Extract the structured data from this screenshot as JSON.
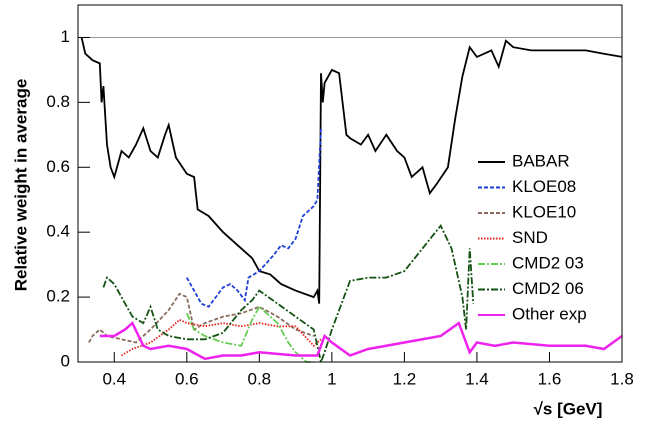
{
  "chart_data": {
    "type": "line",
    "x_label": "√s   [GeV]",
    "y_label": "Relative weight in average",
    "xlim": [
      0.3,
      1.8
    ],
    "ylim": [
      0,
      1.1
    ],
    "xticks": [
      0.4,
      0.6,
      0.8,
      1,
      1.2,
      1.4,
      1.6,
      1.8
    ],
    "yticks": [
      0,
      0.2,
      0.4,
      0.6,
      0.8,
      1
    ],
    "reference_line": 1,
    "legend": "right",
    "series": [
      {
        "name": "BABAR",
        "color": "#000000",
        "style": "solid",
        "x": [
          0.31,
          0.32,
          0.34,
          0.36,
          0.365,
          0.37,
          0.38,
          0.39,
          0.4,
          0.42,
          0.44,
          0.46,
          0.48,
          0.5,
          0.52,
          0.54,
          0.55,
          0.57,
          0.6,
          0.62,
          0.63,
          0.66,
          0.7,
          0.74,
          0.78,
          0.8,
          0.83,
          0.86,
          0.9,
          0.95,
          0.96,
          0.965,
          0.97,
          0.975,
          0.98,
          1.0,
          1.02,
          1.04,
          1.05,
          1.08,
          1.1,
          1.12,
          1.15,
          1.18,
          1.2,
          1.22,
          1.25,
          1.27,
          1.29,
          1.32,
          1.34,
          1.36,
          1.38,
          1.4,
          1.44,
          1.46,
          1.48,
          1.5,
          1.55,
          1.6,
          1.7,
          1.75,
          1.8
        ],
        "values": [
          1.0,
          0.95,
          0.93,
          0.92,
          0.8,
          0.85,
          0.67,
          0.6,
          0.57,
          0.65,
          0.63,
          0.67,
          0.72,
          0.65,
          0.63,
          0.7,
          0.73,
          0.63,
          0.58,
          0.57,
          0.47,
          0.45,
          0.4,
          0.36,
          0.32,
          0.28,
          0.27,
          0.24,
          0.22,
          0.2,
          0.22,
          0.18,
          0.89,
          0.8,
          0.86,
          0.9,
          0.89,
          0.7,
          0.69,
          0.67,
          0.7,
          0.65,
          0.7,
          0.65,
          0.63,
          0.57,
          0.6,
          0.52,
          0.55,
          0.6,
          0.75,
          0.88,
          0.97,
          0.94,
          0.96,
          0.91,
          0.99,
          0.97,
          0.96,
          0.96,
          0.96,
          0.95,
          0.94
        ]
      },
      {
        "name": "KLOE08",
        "color": "#1f3fd8",
        "style": "dashed",
        "x": [
          0.6,
          0.62,
          0.64,
          0.66,
          0.68,
          0.7,
          0.72,
          0.74,
          0.76,
          0.77,
          0.8,
          0.84,
          0.86,
          0.88,
          0.9,
          0.92,
          0.95,
          0.96,
          0.97
        ],
        "values": [
          0.26,
          0.22,
          0.18,
          0.17,
          0.2,
          0.23,
          0.24,
          0.22,
          0.19,
          0.26,
          0.28,
          0.33,
          0.36,
          0.35,
          0.38,
          0.45,
          0.48,
          0.5,
          0.72
        ]
      },
      {
        "name": "KLOE10",
        "color": "#8b6c5c",
        "style": "dashed",
        "x": [
          0.33,
          0.34,
          0.36,
          0.38,
          0.42,
          0.46,
          0.5,
          0.55,
          0.58,
          0.6,
          0.62,
          0.65,
          0.7,
          0.75,
          0.8,
          0.85,
          0.9,
          0.95
        ],
        "values": [
          0.06,
          0.08,
          0.1,
          0.08,
          0.07,
          0.06,
          0.1,
          0.16,
          0.21,
          0.2,
          0.1,
          0.12,
          0.14,
          0.15,
          0.17,
          0.14,
          0.1,
          0.08
        ]
      },
      {
        "name": "SND",
        "color": "#e8221c",
        "style": "dotted",
        "x": [
          0.42,
          0.45,
          0.5,
          0.55,
          0.58,
          0.6,
          0.65,
          0.7,
          0.75,
          0.8,
          0.85,
          0.9,
          0.95,
          0.97
        ],
        "values": [
          0.02,
          0.04,
          0.06,
          0.1,
          0.13,
          0.12,
          0.11,
          0.12,
          0.11,
          0.12,
          0.11,
          0.11,
          0.05,
          0.07
        ]
      },
      {
        "name": "CMD2 03",
        "color": "#66cc55",
        "style": "dashdot",
        "x": [
          0.6,
          0.62,
          0.65,
          0.7,
          0.75,
          0.78,
          0.8,
          0.85,
          0.88,
          0.9,
          0.93,
          0.95
        ],
        "values": [
          0.15,
          0.1,
          0.08,
          0.06,
          0.05,
          0.13,
          0.17,
          0.12,
          0.06,
          0.03,
          0,
          0
        ]
      },
      {
        "name": "CMD2 06",
        "color": "#145214",
        "style": "dashdot",
        "x": [
          0.37,
          0.38,
          0.4,
          0.42,
          0.45,
          0.48,
          0.5,
          0.52,
          0.55,
          0.6,
          0.65,
          0.7,
          0.75,
          0.78,
          0.8,
          0.85,
          0.9,
          0.95,
          0.97,
          0.98,
          1.0,
          1.05,
          1.1,
          1.15,
          1.2,
          1.25,
          1.3,
          1.33,
          1.36,
          1.37,
          1.38,
          1.39
        ],
        "values": [
          0.23,
          0.26,
          0.24,
          0.2,
          0.14,
          0.12,
          0.17,
          0.1,
          0.08,
          0.07,
          0.07,
          0.09,
          0.16,
          0.19,
          0.22,
          0.18,
          0.14,
          0.1,
          0,
          0.03,
          0.1,
          0.25,
          0.26,
          0.26,
          0.28,
          0.35,
          0.42,
          0.35,
          0.2,
          0.1,
          0.35,
          0.18
        ]
      },
      {
        "name": "Other exp",
        "color": "#ee22ee",
        "style": "solid",
        "x": [
          0.36,
          0.4,
          0.43,
          0.45,
          0.48,
          0.5,
          0.55,
          0.6,
          0.65,
          0.7,
          0.75,
          0.8,
          0.9,
          0.96,
          0.98,
          1.0,
          1.05,
          1.1,
          1.2,
          1.3,
          1.35,
          1.38,
          1.4,
          1.45,
          1.5,
          1.6,
          1.7,
          1.75,
          1.8
        ],
        "values": [
          0.08,
          0.08,
          0.1,
          0.12,
          0.05,
          0.04,
          0.05,
          0.04,
          0.01,
          0.02,
          0.02,
          0.03,
          0.02,
          0.02,
          0.08,
          0.06,
          0.02,
          0.04,
          0.06,
          0.08,
          0.12,
          0.03,
          0.06,
          0.05,
          0.06,
          0.05,
          0.05,
          0.04,
          0.08
        ]
      }
    ]
  }
}
